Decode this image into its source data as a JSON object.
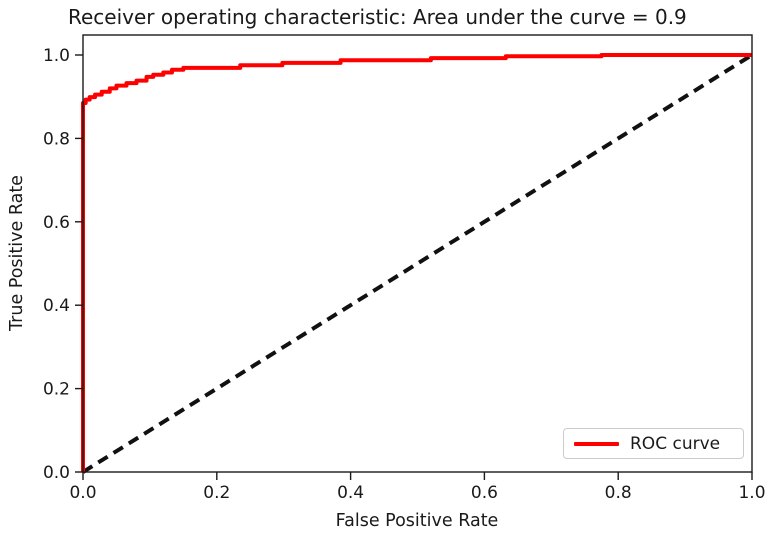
{
  "figure": {
    "background": "#ffffff"
  },
  "chart_data": {
    "type": "line",
    "title": "Receiver operating characteristic: Area under the curve = 0.9",
    "title_clipped_at_right": true,
    "xlabel": "False Positive Rate",
    "ylabel": "True Positive Rate",
    "xlim": [
      0.0,
      1.0
    ],
    "ylim": [
      0.0,
      1.05
    ],
    "xticks": [
      "0.0",
      "0.2",
      "0.4",
      "0.6",
      "0.8",
      "1.0"
    ],
    "yticks": [
      "0.0",
      "0.2",
      "0.4",
      "0.6",
      "0.8",
      "1.0"
    ],
    "grid": false,
    "axes_color": "#1a1a1a",
    "legend": {
      "position": "lower-right",
      "entries": [
        {
          "label": "ROC curve",
          "color": "#ff0000"
        }
      ]
    },
    "series": [
      {
        "name": "ROC curve",
        "draw": "steps-post",
        "color": "#ff0000",
        "linewidth": 4,
        "fpr": [
          0,
          0,
          0.004,
          0.01,
          0.018,
          0.028,
          0.04,
          0.05,
          0.065,
          0.08,
          0.095,
          0.105,
          0.12,
          0.133,
          0.15,
          0.235,
          0.298,
          0.385,
          0.52,
          0.632,
          0.775,
          1.0
        ],
        "tpr": [
          0,
          0.885,
          0.893,
          0.899,
          0.905,
          0.912,
          0.92,
          0.9265,
          0.9325,
          0.9385,
          0.9475,
          0.9525,
          0.958,
          0.9645,
          0.969,
          0.9755,
          0.981,
          0.9875,
          0.9925,
          0.997,
          1.0,
          1.0
        ]
      },
      {
        "name": "chance-diagonal",
        "draw": "line",
        "color": "#111111",
        "linewidth": 4,
        "dash": [
          11,
          7
        ],
        "x": [
          0,
          1
        ],
        "y": [
          0,
          1
        ]
      }
    ]
  }
}
